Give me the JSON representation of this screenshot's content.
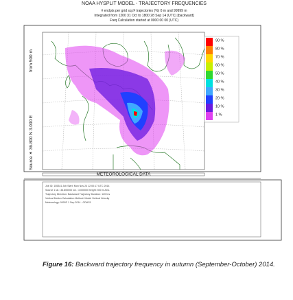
{
  "header": {
    "title": "NOAA HYSPLIT MODEL - TRAJECTORY FREQUENCIES",
    "lines": [
      "# endpts per grid sq./# trajectories (%)   0 m and 99999 m",
      "Integrated from 1200 31 Oct to 1800 28 Sep 14 (UTC) [backward]",
      "Freq Calculation started at 0000 00   00 (UTC)"
    ]
  },
  "map": {
    "source_label": "Source ✶  36.800 N  3.000 E",
    "height_label": "from  500 m",
    "legend": [
      {
        "label": "90 %",
        "color": "#ff0000"
      },
      {
        "label": "80 %",
        "color": "#ff8000"
      },
      {
        "label": "70 %",
        "color": "#ffd800"
      },
      {
        "label": "60 %",
        "color": "#c8f000"
      },
      {
        "label": "50 %",
        "color": "#30d830"
      },
      {
        "label": "40 %",
        "color": "#00e0e0"
      },
      {
        "label": "30 %",
        "color": "#40a8ff"
      },
      {
        "label": "20 %",
        "color": "#2040ff"
      },
      {
        "label": "10 %",
        "color": "#6a1ae0"
      },
      {
        "label": "1 %",
        "color": "#e040f0"
      }
    ]
  },
  "met": {
    "title": "METEOROLOGICAL DATA",
    "lines": [
      "Job ID: 155341   Job Start: Mon Nov 24 12:00:17 UTC 2014",
      "Source 1   lat.: 36.800000   lon.: 3.000000   height: 500 m AGL",
      "Trajectory Direction: Backward     Trajectory Duration: 120 hrs",
      "Vertical Motion Calculation Method: Model Vertical Velocity",
      "Meteorology: 0000Z 1 Sep 2014 - GDAS1"
    ]
  },
  "caption": {
    "label": "Figure 16:",
    "text": "Backward trajectory frequency in autumn (September-October) 2014."
  }
}
